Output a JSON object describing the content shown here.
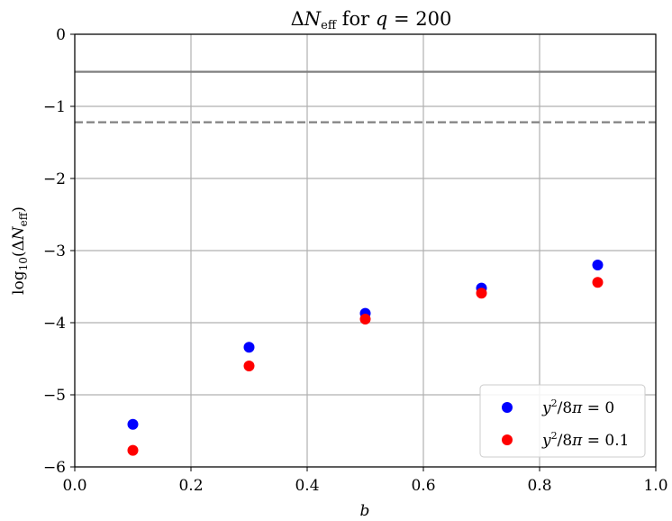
{
  "chart_data": {
    "type": "scatter",
    "title": "ΔN_eff for q = 200",
    "xlabel": "b",
    "ylabel": "log10(ΔN_eff)",
    "xlim": [
      0.0,
      1.0
    ],
    "ylim": [
      -6,
      0
    ],
    "x_ticks": [
      "0.0",
      "0.2",
      "0.4",
      "0.6",
      "0.8",
      "1.0"
    ],
    "y_ticks": [
      "0",
      "−1",
      "−2",
      "−3",
      "−4",
      "−5",
      "−6"
    ],
    "grid": true,
    "legend_position": "lower-right",
    "reference_lines": [
      {
        "style": "solid",
        "y": -0.52,
        "color": "#808080"
      },
      {
        "style": "dashed",
        "y": -1.22,
        "color": "#808080"
      }
    ],
    "series": [
      {
        "name": "y²/8π = 0",
        "color": "#0000ff",
        "x": [
          0.1,
          0.3,
          0.5,
          0.7,
          0.9
        ],
        "y": [
          -5.41,
          -4.34,
          -3.87,
          -3.52,
          -3.2
        ]
      },
      {
        "name": "y²/8π = 0.1",
        "color": "#ff0000",
        "x": [
          0.1,
          0.3,
          0.5,
          0.7,
          0.9
        ],
        "y": [
          -5.77,
          -4.6,
          -3.95,
          -3.59,
          -3.44
        ]
      }
    ]
  }
}
